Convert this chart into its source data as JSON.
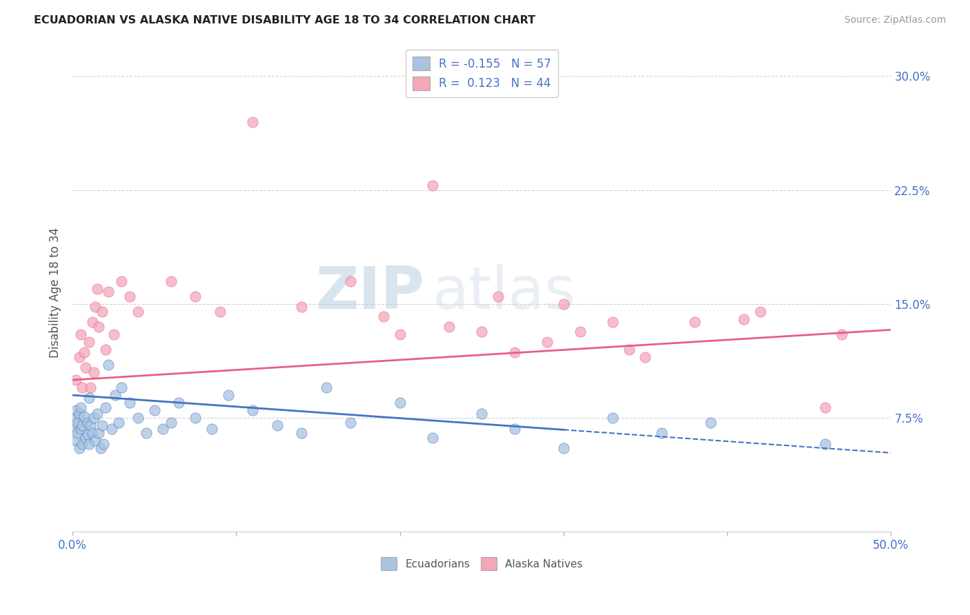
{
  "title": "ECUADORIAN VS ALASKA NATIVE DISABILITY AGE 18 TO 34 CORRELATION CHART",
  "source": "Source: ZipAtlas.com",
  "ylabel": "Disability Age 18 to 34",
  "xlim": [
    0.0,
    0.5
  ],
  "ylim": [
    0.0,
    0.315
  ],
  "yticks": [
    0.075,
    0.15,
    0.225,
    0.3
  ],
  "ytick_labels": [
    "7.5%",
    "15.0%",
    "22.5%",
    "30.0%"
  ],
  "xticks": [
    0.0,
    0.1,
    0.2,
    0.3,
    0.4,
    0.5
  ],
  "xtick_labels": [
    "0.0%",
    "",
    "",
    "",
    "",
    "50.0%"
  ],
  "ecuadorian_color": "#a8c4e0",
  "alaska_color": "#f4a7b9",
  "trend_ecuadorian_color": "#4472c4",
  "trend_alaska_color": "#e85d8a",
  "watermark_zip": "ZIP",
  "watermark_atlas": "atlas",
  "legend_r_ecuadorian": "-0.155",
  "legend_n_ecuadorian": "57",
  "legend_r_alaska": "0.123",
  "legend_n_alaska": "44",
  "ecuadorian_x": [
    0.001,
    0.001,
    0.002,
    0.002,
    0.003,
    0.003,
    0.004,
    0.004,
    0.005,
    0.005,
    0.006,
    0.006,
    0.007,
    0.008,
    0.009,
    0.009,
    0.01,
    0.01,
    0.011,
    0.012,
    0.013,
    0.014,
    0.015,
    0.016,
    0.017,
    0.018,
    0.019,
    0.02,
    0.022,
    0.024,
    0.026,
    0.028,
    0.03,
    0.035,
    0.04,
    0.045,
    0.05,
    0.055,
    0.06,
    0.065,
    0.075,
    0.085,
    0.095,
    0.11,
    0.125,
    0.14,
    0.155,
    0.17,
    0.2,
    0.22,
    0.25,
    0.27,
    0.3,
    0.33,
    0.36,
    0.39,
    0.46
  ],
  "ecuadorian_y": [
    0.075,
    0.068,
    0.08,
    0.06,
    0.072,
    0.065,
    0.078,
    0.055,
    0.082,
    0.068,
    0.058,
    0.07,
    0.076,
    0.062,
    0.064,
    0.072,
    0.088,
    0.058,
    0.07,
    0.065,
    0.075,
    0.06,
    0.078,
    0.065,
    0.055,
    0.07,
    0.058,
    0.082,
    0.11,
    0.068,
    0.09,
    0.072,
    0.095,
    0.085,
    0.075,
    0.065,
    0.08,
    0.068,
    0.072,
    0.085,
    0.075,
    0.068,
    0.09,
    0.08,
    0.07,
    0.065,
    0.095,
    0.072,
    0.085,
    0.062,
    0.078,
    0.068,
    0.055,
    0.075,
    0.065,
    0.072,
    0.058
  ],
  "alaska_x": [
    0.002,
    0.004,
    0.005,
    0.006,
    0.007,
    0.008,
    0.01,
    0.011,
    0.012,
    0.013,
    0.014,
    0.015,
    0.016,
    0.018,
    0.02,
    0.022,
    0.025,
    0.03,
    0.035,
    0.04,
    0.06,
    0.075,
    0.09,
    0.11,
    0.14,
    0.17,
    0.2,
    0.23,
    0.26,
    0.3,
    0.34,
    0.38,
    0.42,
    0.46,
    0.29,
    0.35,
    0.41,
    0.47,
    0.25,
    0.19,
    0.22,
    0.31,
    0.27,
    0.33
  ],
  "alaska_y": [
    0.1,
    0.115,
    0.13,
    0.095,
    0.118,
    0.108,
    0.125,
    0.095,
    0.138,
    0.105,
    0.148,
    0.16,
    0.135,
    0.145,
    0.12,
    0.158,
    0.13,
    0.165,
    0.155,
    0.145,
    0.165,
    0.155,
    0.145,
    0.27,
    0.148,
    0.165,
    0.13,
    0.135,
    0.155,
    0.15,
    0.12,
    0.138,
    0.145,
    0.082,
    0.125,
    0.115,
    0.14,
    0.13,
    0.132,
    0.142,
    0.228,
    0.132,
    0.118,
    0.138
  ],
  "background_color": "#ffffff",
  "grid_color": "#d0d0d0",
  "trend_ecu_x0": 0.0,
  "trend_ecu_x1": 0.5,
  "trend_ecu_y0": 0.09,
  "trend_ecu_y1": 0.052,
  "trend_ecu_solid_end": 0.3,
  "trend_alas_x0": 0.0,
  "trend_alas_x1": 0.5,
  "trend_alas_y0": 0.1,
  "trend_alas_y1": 0.133
}
